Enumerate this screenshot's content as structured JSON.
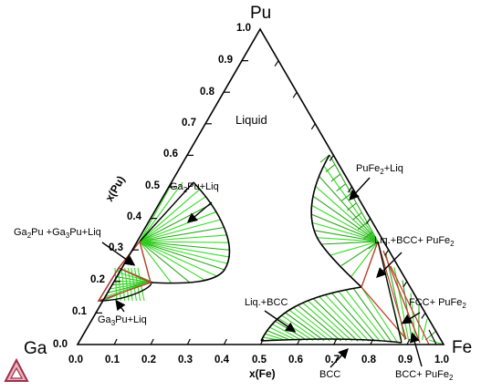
{
  "corners": {
    "top": "Pu",
    "left": "Ga",
    "right": "Fe"
  },
  "axes": {
    "pu_label": "x(Pu)",
    "fe_label": "x(Fe)",
    "pu_ticks": [
      "0.0",
      "0.1",
      "0.2",
      "0.3",
      "0.4",
      "0.5",
      "0.6",
      "0.7",
      "0.8",
      "0.9",
      "1.0"
    ],
    "fe_ticks": [
      "0.0",
      "0.1",
      "0.2",
      "0.3",
      "0.4",
      "0.5",
      "0.6",
      "0.7",
      "0.8",
      "0.9",
      "1.0"
    ]
  },
  "regions": {
    "liquid": "Liquid",
    "ga2pu_liq": {
      "a": "Ga",
      "b": "Pu+Liq"
    },
    "ga2pu_ga3pu_liq": {
      "a": "Ga",
      "b": "Pu +Ga",
      "c": "Pu+Liq"
    },
    "ga3pu_liq": {
      "a": "Ga",
      "b": "Pu+Liq"
    },
    "pufe2_liq": {
      "a": "PuFe",
      "b": "+Liq"
    },
    "liq_bcc_pufe2": {
      "a": "Liq.+BCC+ PuFe"
    },
    "liq_bcc": "Liq.+BCC",
    "fcc_pufe2": {
      "a": "FCC+ PuFe"
    },
    "bcc": "BCC",
    "bcc_pufe2": {
      "a": "BCC+ PuFe"
    },
    "sub2": "2",
    "sub3": "3"
  },
  "colors": {
    "tie_line": "#33dd22",
    "tie_line_dark": "#2aa81a",
    "boundary": "#000000",
    "three_phase": "#c0392b",
    "logo_fill": "#e8b4c0",
    "logo_stroke": "#a0304a"
  }
}
